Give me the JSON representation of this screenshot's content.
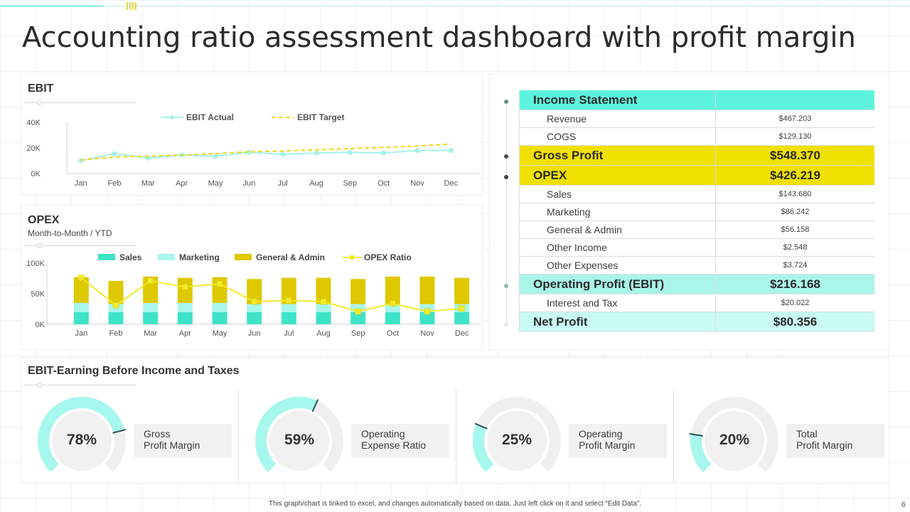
{
  "title": "Accounting ratio assessment dashboard with profit margin",
  "colors": {
    "teal": "#3fe3c8",
    "mint": "#a8f5ec",
    "yellow": "#dec800",
    "gauge_fill": "#a6f7ee",
    "gauge_track": "#efefef",
    "head_teal": "#5cf4dc",
    "head_yellow": "#f0e100",
    "ebit_row": "#a9f5e9",
    "net_row": "#c9faf4"
  },
  "ebit_panel": {
    "title": "EBIT"
  },
  "opex_panel": {
    "title": "OPEX",
    "subtitle": "Month-to-Month / YTD"
  },
  "ebit_section": {
    "title": "EBIT-Earning Before Income and Taxes"
  },
  "chart_data": [
    {
      "type": "line",
      "title": "EBIT",
      "categories": [
        "Jan",
        "Feb",
        "Mar",
        "Apr",
        "May",
        "Jun",
        "Jul",
        "Aug",
        "Sep",
        "Oct",
        "Nov",
        "Dec"
      ],
      "series": [
        {
          "name": "EBIT Actual",
          "values": [
            10000,
            15500,
            12000,
            14500,
            13500,
            16500,
            15000,
            16000,
            16500,
            16000,
            18000,
            18000
          ]
        },
        {
          "name": "EBIT Target",
          "values": [
            10500,
            13000,
            13500,
            14500,
            15500,
            17000,
            17500,
            18500,
            19500,
            20500,
            21500,
            23000
          ]
        }
      ],
      "y_ticks": [
        "0K",
        "20K",
        "40K"
      ],
      "ylim": [
        0,
        40000
      ]
    },
    {
      "type": "bar",
      "title": "OPEX",
      "categories": [
        "Jan",
        "Feb",
        "Mar",
        "Apr",
        "May",
        "Jun",
        "Jul",
        "Aug",
        "Sep",
        "Oct",
        "Nov",
        "Dec"
      ],
      "series": [
        {
          "name": "Sales",
          "values": [
            20000,
            20000,
            20000,
            20000,
            20000,
            20000,
            20000,
            20000,
            20000,
            20000,
            20000,
            20000
          ]
        },
        {
          "name": "Marketing",
          "values": [
            15000,
            13000,
            15000,
            15000,
            15000,
            13000,
            13000,
            13000,
            13000,
            13000,
            13000,
            13000
          ]
        },
        {
          "name": "General & Admin",
          "values": [
            42000,
            38000,
            43000,
            41000,
            42000,
            41000,
            43000,
            43000,
            41000,
            45000,
            45000,
            43000
          ]
        },
        {
          "name": "OPEX Ratio",
          "values": [
            76000,
            31000,
            71000,
            61000,
            66000,
            37000,
            39000,
            37000,
            21000,
            34000,
            21000,
            26000
          ]
        }
      ],
      "y_ticks": [
        "0K",
        "50K",
        "100K"
      ],
      "ylim": [
        0,
        100000
      ]
    }
  ],
  "income_statement": {
    "rows": [
      {
        "label": "Income Statement",
        "value": "",
        "kind": "head",
        "color": "#5cf4dc"
      },
      {
        "label": "Revenue",
        "value": "$467.203",
        "kind": "sub"
      },
      {
        "label": "COGS",
        "value": "$129.130",
        "kind": "sub"
      },
      {
        "label": "Gross Profit",
        "value": "$548.370",
        "kind": "head",
        "color": "#f0e100"
      },
      {
        "label": "OPEX",
        "value": "$426.219",
        "kind": "head",
        "color": "#f0e100"
      },
      {
        "label": "Sales",
        "value": "$143.680",
        "kind": "sub"
      },
      {
        "label": "Marketing",
        "value": "$86.242",
        "kind": "sub"
      },
      {
        "label": "General  & Admin",
        "value": "$56.158",
        "kind": "sub"
      },
      {
        "label": "Other Income",
        "value": "$2.548",
        "kind": "sub"
      },
      {
        "label": "Other Expenses",
        "value": "$3.724",
        "kind": "sub"
      },
      {
        "label": "Operating Profit (EBIT)",
        "value": "$216.168",
        "kind": "head",
        "color": "#a9f5e9"
      },
      {
        "label": "Interest and Tax",
        "value": "$20.022",
        "kind": "sub"
      },
      {
        "label": "Net Profit",
        "value": "$80.356",
        "kind": "head",
        "color": "#c9faf4"
      }
    ]
  },
  "gauges": [
    {
      "value": "78%",
      "percent": 78,
      "label_line1": "Gross",
      "label_line2": "Profit Margin"
    },
    {
      "value": "59%",
      "percent": 59,
      "label_line1": "Operating",
      "label_line2": "Expense Ratio"
    },
    {
      "value": "25%",
      "percent": 25,
      "label_line1": "Operating",
      "label_line2": "Profit Margin"
    },
    {
      "value": "20%",
      "percent": 20,
      "label_line1": "Total",
      "label_line2": "Profit Margin"
    }
  ],
  "footnote": "This graph/chart is linked to excel, and changes automatically based on data. Just left click on it and select “Edit Data”.",
  "page_number": "6"
}
